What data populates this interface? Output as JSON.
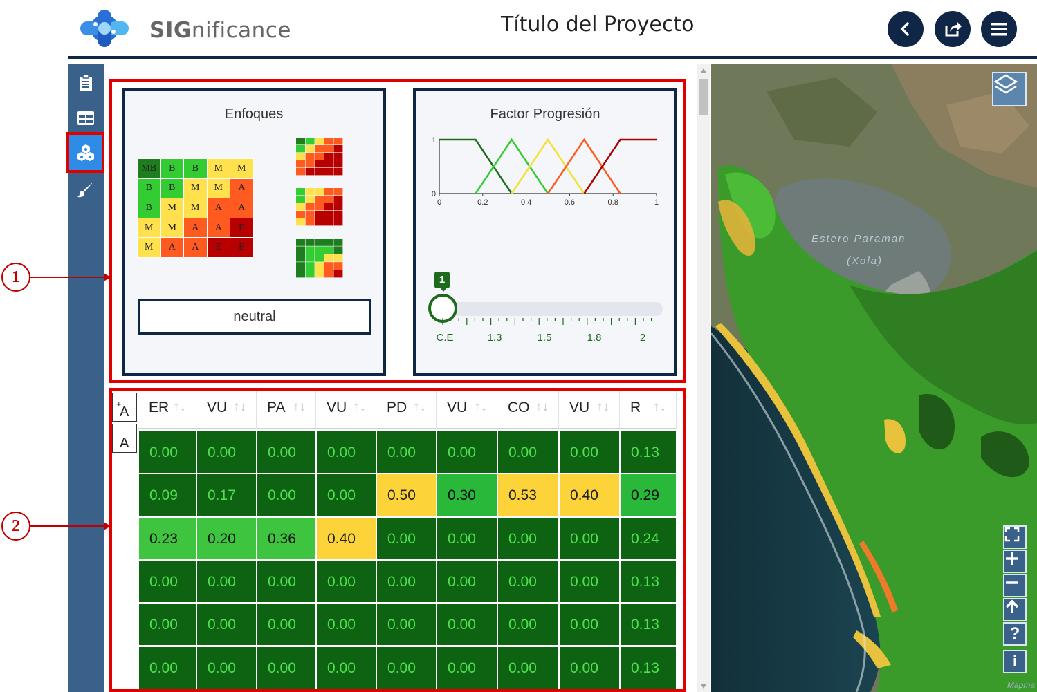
{
  "header": {
    "brand_prefix": "SIG",
    "brand_suffix": "nificance",
    "project_title": "Título del Proyecto",
    "buttons": [
      "back-icon",
      "share-icon",
      "menu-icon"
    ]
  },
  "sidebar": {
    "items": [
      {
        "icon": "clipboard-icon",
        "active": false
      },
      {
        "icon": "table-icon",
        "active": false
      },
      {
        "icon": "layers-cluster-icon",
        "active": true
      },
      {
        "icon": "brush-icon",
        "active": false
      }
    ]
  },
  "enfoques": {
    "title": "Enfoques",
    "matrix": [
      [
        "MB",
        "B",
        "B",
        "M",
        "M"
      ],
      [
        "B",
        "B",
        "M",
        "M",
        "A"
      ],
      [
        "B",
        "M",
        "M",
        "A",
        "A"
      ],
      [
        "M",
        "M",
        "A",
        "A",
        "E"
      ],
      [
        "M",
        "A",
        "A",
        "E",
        "E"
      ]
    ],
    "level_colors": {
      "MB": "#1e7d1e",
      "B": "#33cc33",
      "M": "#ffe14d",
      "A": "#ff5a1f",
      "E": "#b80000"
    },
    "selected_button": "neutral"
  },
  "factor": {
    "title": "Factor Progresión",
    "chart_data": {
      "type": "line",
      "x_ticks": [
        "0",
        "0.2",
        "0.4",
        "0.6",
        "0.8",
        "1"
      ],
      "y_ticks": [
        "0",
        "1"
      ],
      "xlim": [
        0,
        1
      ],
      "ylim": [
        0,
        1
      ],
      "series": [
        {
          "color": "#1e6b1e",
          "x": [
            0,
            0.167,
            0.333
          ],
          "y": [
            1,
            1,
            0
          ]
        },
        {
          "color": "#33cc33",
          "x": [
            0.167,
            0.333,
            0.5
          ],
          "y": [
            0,
            1,
            0
          ]
        },
        {
          "color": "#f2e233",
          "x": [
            0.333,
            0.5,
            0.667
          ],
          "y": [
            0,
            1,
            0
          ]
        },
        {
          "color": "#ff5a1f",
          "x": [
            0.5,
            0.667,
            0.833
          ],
          "y": [
            0,
            1,
            0
          ]
        },
        {
          "color": "#a80000",
          "x": [
            0.667,
            0.833,
            1
          ],
          "y": [
            0,
            1,
            1
          ]
        }
      ]
    },
    "slider": {
      "value": "1",
      "tick_labels": [
        "C.E",
        "1.3",
        "1.5",
        "1.8",
        "2"
      ]
    }
  },
  "table": {
    "font_increase": "A",
    "font_decrease": "A",
    "font_increase_sup": "+",
    "font_decrease_sup": "-",
    "sort_glyph": "↑↓",
    "columns": [
      "ER",
      "VU",
      "PA",
      "VU",
      "PD",
      "VU",
      "CO",
      "VU",
      "R"
    ],
    "rows": [
      [
        "0.00",
        "0.00",
        "0.00",
        "0.00",
        "0.00",
        "0.00",
        "0.00",
        "0.00",
        "0.13"
      ],
      [
        "0.09",
        "0.17",
        "0.00",
        "0.00",
        "0.50",
        "0.30",
        "0.53",
        "0.40",
        "0.29"
      ],
      [
        "0.23",
        "0.20",
        "0.36",
        "0.40",
        "0.00",
        "0.00",
        "0.00",
        "0.00",
        "0.24"
      ],
      [
        "0.00",
        "0.00",
        "0.00",
        "0.00",
        "0.00",
        "0.00",
        "0.00",
        "0.00",
        "0.13"
      ],
      [
        "0.00",
        "0.00",
        "0.00",
        "0.00",
        "0.00",
        "0.00",
        "0.00",
        "0.00",
        "0.13"
      ],
      [
        "0.00",
        "0.00",
        "0.00",
        "0.00",
        "0.00",
        "0.00",
        "0.00",
        "0.00",
        "0.13"
      ]
    ],
    "row_colors": [
      [
        "dg",
        "dg",
        "dg",
        "dg",
        "dg",
        "dg",
        "dg",
        "dg",
        "dg"
      ],
      [
        "dg",
        "dg",
        "dg",
        "dg",
        "y",
        "g",
        "y",
        "y",
        "g"
      ],
      [
        "lg",
        "lg",
        "lg",
        "y",
        "dg",
        "dg",
        "dg",
        "dg",
        "dg"
      ],
      [
        "dg",
        "dg",
        "dg",
        "dg",
        "dg",
        "dg",
        "dg",
        "dg",
        "dg"
      ],
      [
        "dg",
        "dg",
        "dg",
        "dg",
        "dg",
        "dg",
        "dg",
        "dg",
        "dg"
      ],
      [
        "dg",
        "dg",
        "dg",
        "dg",
        "dg",
        "dg",
        "dg",
        "dg",
        "dg"
      ]
    ],
    "palette": {
      "dg": "#0d6312",
      "g": "#2ab83a",
      "lg": "#3ec43e",
      "y": "#fdd33a"
    }
  },
  "annotations": [
    "1",
    "2"
  ],
  "map": {
    "label_line1": "Estero Paraman",
    "label_line2": "(Xola)",
    "attribution": "Mapma",
    "controls": [
      "layers-icon",
      "fullscreen-icon",
      "zoom-in-icon",
      "zoom-out-icon",
      "north-arrow-icon",
      "help-icon",
      "info-icon"
    ]
  }
}
